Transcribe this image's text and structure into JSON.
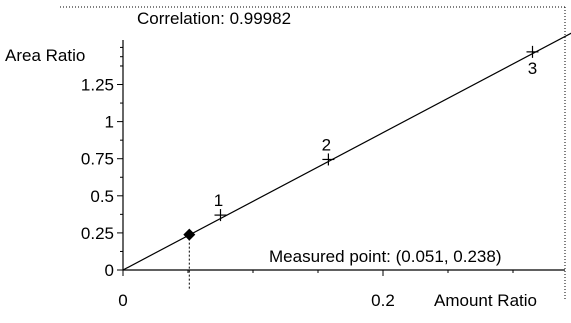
{
  "chart_data": {
    "type": "scatter",
    "title": "Correlation: 0.99982",
    "xlabel": "Amount Ratio",
    "ylabel": "Area Ratio",
    "xlim": [
      0,
      0.34
    ],
    "ylim": [
      0,
      1.55
    ],
    "x_ticks": [
      0,
      0.2
    ],
    "x_tick_labels": [
      "0",
      "0.2"
    ],
    "y_ticks": [
      0,
      0.25,
      0.5,
      0.75,
      1,
      1.25
    ],
    "y_tick_labels": [
      "0",
      "0.25",
      "0.5",
      "0.75",
      "1",
      "1.25"
    ],
    "calibration_points": [
      {
        "label": "1",
        "x": 0.075,
        "y": 0.37
      },
      {
        "label": "2",
        "x": 0.158,
        "y": 0.745
      },
      {
        "label": "3",
        "x": 0.315,
        "y": 1.47
      }
    ],
    "fit_line": {
      "x": [
        0,
        0.35
      ],
      "y": [
        0,
        1.62
      ]
    },
    "measured_point": {
      "x": 0.051,
      "y": 0.238
    },
    "annotation": "Measured point: (0.051, 0.238)",
    "grid": false
  }
}
